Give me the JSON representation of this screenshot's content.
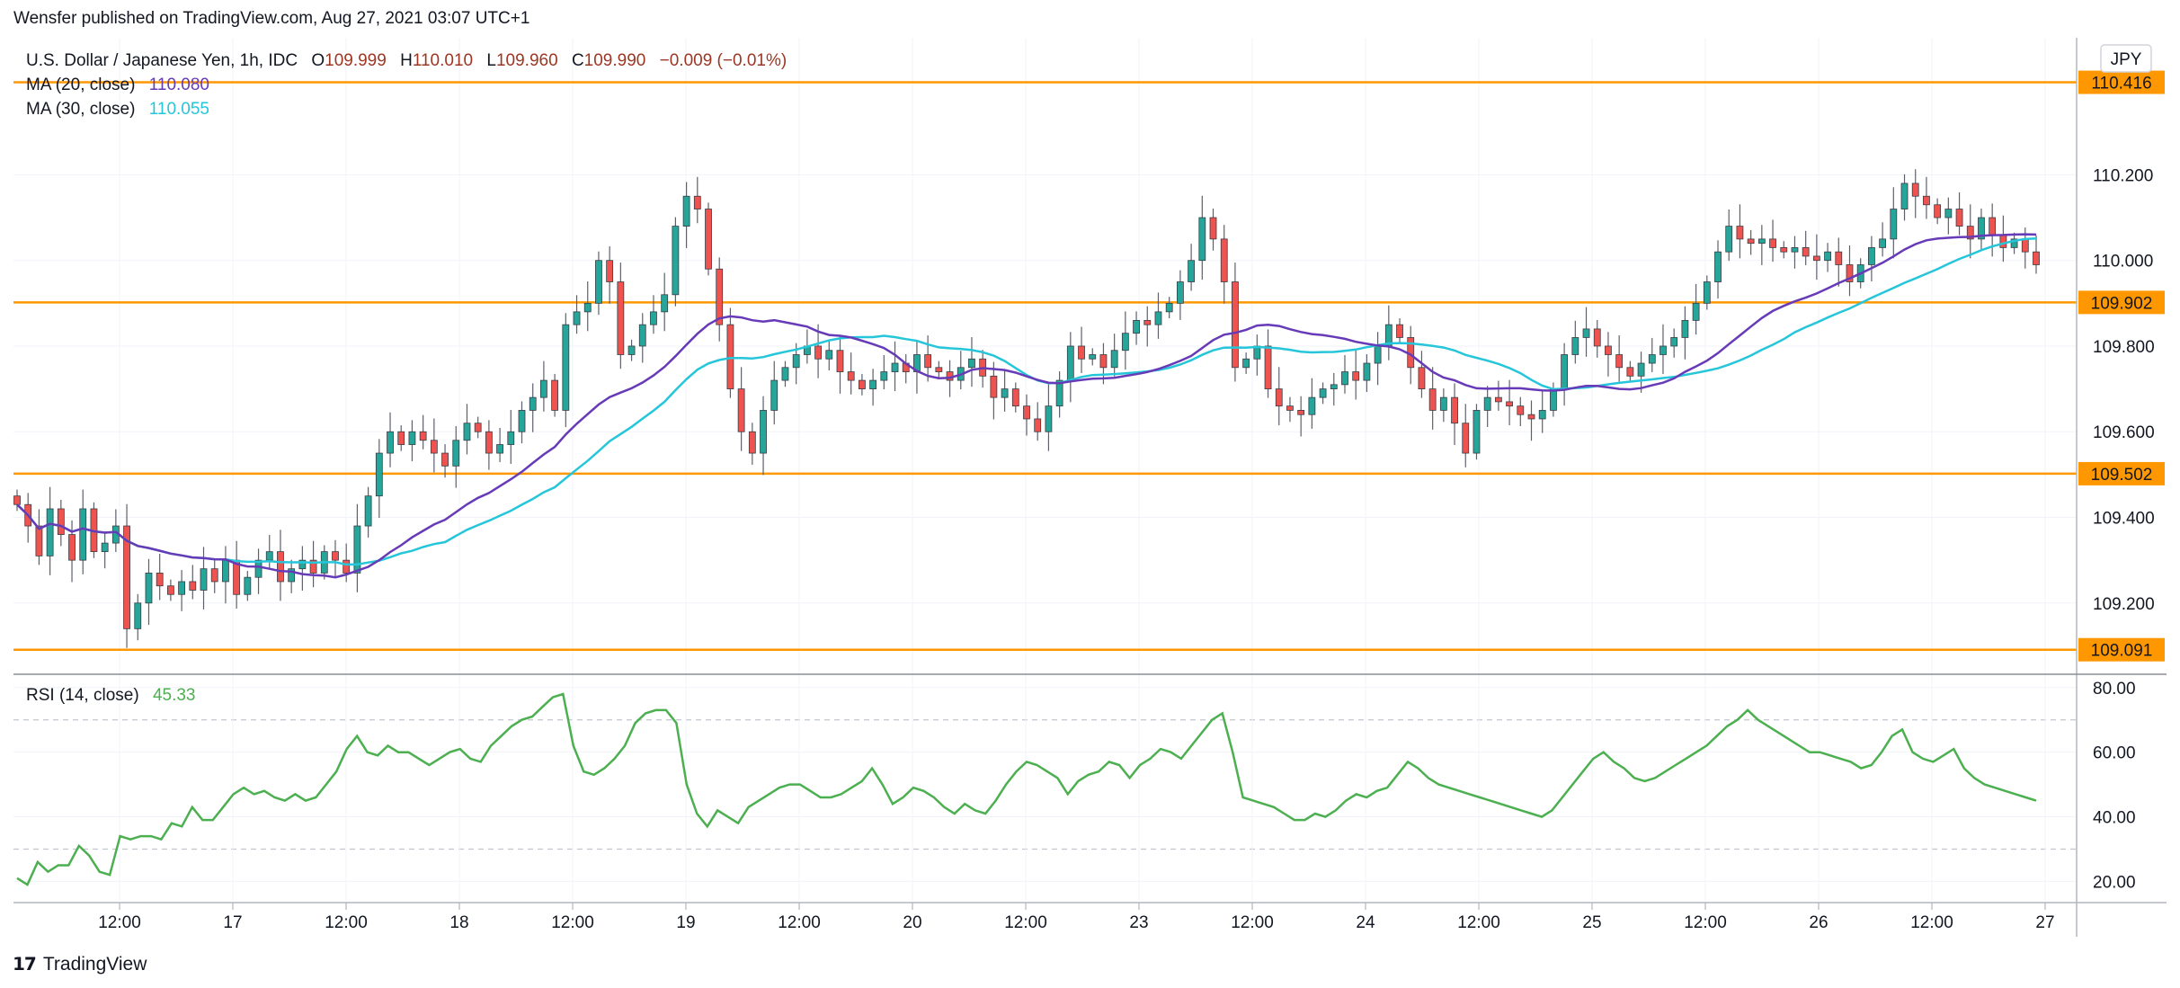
{
  "header": {
    "published": "Wensfer published on TradingView.com, Aug 27, 2021 03:07 UTC+1"
  },
  "legend": {
    "symbol": "U.S. Dollar / Japanese Yen, 1h, IDC",
    "o_label": "O",
    "o": "109.999",
    "h_label": "H",
    "h": "110.010",
    "l_label": "L",
    "l": "109.960",
    "c_label": "C",
    "c": "109.990",
    "chg": "−0.009 (−0.01%)",
    "ma20": "MA (20, close)",
    "ma20_val": "110.080",
    "ma30": "MA (30, close)",
    "ma30_val": "110.055",
    "rsi": "RSI (14, close)",
    "rsi_val": "45.33"
  },
  "currency_badge": "JPY",
  "brand": "TradingView",
  "colors": {
    "up": "#26a69a",
    "down": "#ef5350",
    "ma20": "#673ab7",
    "ma30": "#26c6da",
    "level": "#ff9800",
    "rsi": "#4caf50"
  },
  "chart_data": {
    "type": "candlestick",
    "y_ticks": [
      "110.200",
      "110.000",
      "109.800",
      "109.600",
      "109.400",
      "109.200"
    ],
    "ylim": [
      109.04,
      110.52
    ],
    "x_ticks": [
      "12:00",
      "17",
      "12:00",
      "18",
      "12:00",
      "19",
      "12:00",
      "20",
      "12:00",
      "23",
      "12:00",
      "24",
      "12:00",
      "25",
      "12:00",
      "26",
      "12:00",
      "27"
    ],
    "levels": [
      {
        "value": 110.416,
        "label": "110.416"
      },
      {
        "value": 109.902,
        "label": "109.902"
      },
      {
        "value": 109.502,
        "label": "109.502"
      },
      {
        "value": 109.091,
        "label": "109.091"
      }
    ],
    "series": [
      {
        "name": "MA (20, close)"
      },
      {
        "name": "MA (30, close)"
      }
    ],
    "close": [
      109.43,
      109.38,
      109.31,
      109.42,
      109.36,
      109.3,
      109.42,
      109.32,
      109.34,
      109.38,
      109.14,
      109.2,
      109.27,
      109.24,
      109.22,
      109.25,
      109.23,
      109.28,
      109.25,
      109.3,
      109.22,
      109.26,
      109.3,
      109.32,
      109.25,
      109.28,
      109.3,
      109.27,
      109.32,
      109.3,
      109.27,
      109.38,
      109.45,
      109.55,
      109.6,
      109.57,
      109.6,
      109.58,
      109.55,
      109.52,
      109.58,
      109.62,
      109.6,
      109.55,
      109.57,
      109.6,
      109.65,
      109.68,
      109.72,
      109.65,
      109.85,
      109.88,
      109.9,
      110.0,
      109.95,
      109.78,
      109.8,
      109.85,
      109.88,
      109.92,
      110.08,
      110.15,
      110.12,
      109.98,
      109.85,
      109.7,
      109.6,
      109.55,
      109.65,
      109.72,
      109.75,
      109.78,
      109.8,
      109.77,
      109.79,
      109.74,
      109.72,
      109.7,
      109.72,
      109.74,
      109.76,
      109.74,
      109.78,
      109.75,
      109.74,
      109.72,
      109.75,
      109.77,
      109.73,
      109.68,
      109.7,
      109.66,
      109.63,
      109.6,
      109.66,
      109.72,
      109.8,
      109.77,
      109.78,
      109.75,
      109.79,
      109.83,
      109.86,
      109.85,
      109.88,
      109.9,
      109.95,
      110.0,
      110.1,
      110.05,
      109.95,
      109.75,
      109.77,
      109.8,
      109.7,
      109.66,
      109.65,
      109.64,
      109.68,
      109.7,
      109.71,
      109.74,
      109.72,
      109.76,
      109.8,
      109.85,
      109.82,
      109.75,
      109.7,
      109.65,
      109.68,
      109.62,
      109.55,
      109.65,
      109.68,
      109.67,
      109.66,
      109.64,
      109.63,
      109.65,
      109.7,
      109.78,
      109.82,
      109.84,
      109.8,
      109.78,
      109.75,
      109.73,
      109.76,
      109.78,
      109.8,
      109.82,
      109.86,
      109.9,
      109.95,
      110.02,
      110.08,
      110.05,
      110.04,
      110.05,
      110.03,
      110.02,
      110.03,
      110.01,
      110.0,
      110.02,
      109.99,
      109.95,
      109.99,
      110.03,
      110.05,
      110.12,
      110.18,
      110.15,
      110.13,
      110.1,
      110.12,
      110.08,
      110.05,
      110.1,
      110.06,
      110.03,
      110.05,
      110.02,
      109.99
    ],
    "rsi": {
      "levels": [
        70,
        30
      ],
      "ticks": [
        "80.00",
        "60.00",
        "40.00",
        "20.00"
      ],
      "ylim": [
        14,
        83
      ],
      "values": [
        21,
        19,
        26,
        23,
        25,
        25,
        31,
        28,
        23,
        22,
        34,
        33,
        34,
        34,
        33,
        38,
        37,
        43,
        39,
        39,
        43,
        47,
        49,
        47,
        48,
        46,
        45,
        47,
        45,
        46,
        50,
        54,
        61,
        65,
        60,
        59,
        62,
        60,
        60,
        58,
        56,
        58,
        60,
        61,
        58,
        57,
        62,
        65,
        68,
        70,
        71,
        74,
        77,
        78,
        62,
        54,
        53,
        55,
        58,
        62,
        69,
        72,
        73,
        73,
        69,
        50,
        41,
        37,
        42,
        40,
        38,
        43,
        45,
        47,
        49,
        50,
        50,
        48,
        46,
        46,
        47,
        49,
        51,
        55,
        50,
        44,
        46,
        49,
        48,
        46,
        43,
        41,
        44,
        42,
        41,
        45,
        50,
        54,
        57,
        56,
        54,
        52,
        47,
        51,
        53,
        54,
        57,
        56,
        52,
        56,
        58,
        61,
        60,
        58,
        62,
        66,
        70,
        72,
        60,
        46,
        45,
        44,
        43,
        41,
        39,
        39,
        41,
        40,
        42,
        45,
        47,
        46,
        48,
        49,
        53,
        57,
        55,
        52,
        50,
        49,
        48,
        47,
        46,
        45,
        44,
        43,
        42,
        41,
        40,
        42,
        46,
        50,
        54,
        58,
        60,
        57,
        55,
        52,
        51,
        52,
        54,
        56,
        58,
        60,
        62,
        65,
        68,
        70,
        73,
        70,
        68,
        66,
        64,
        62,
        60,
        60,
        59,
        58,
        57,
        55,
        56,
        60,
        65,
        67,
        60,
        58,
        57,
        59,
        61,
        55,
        52,
        50,
        49,
        48,
        47,
        46,
        45
      ],
      "value": 45.33
    }
  }
}
